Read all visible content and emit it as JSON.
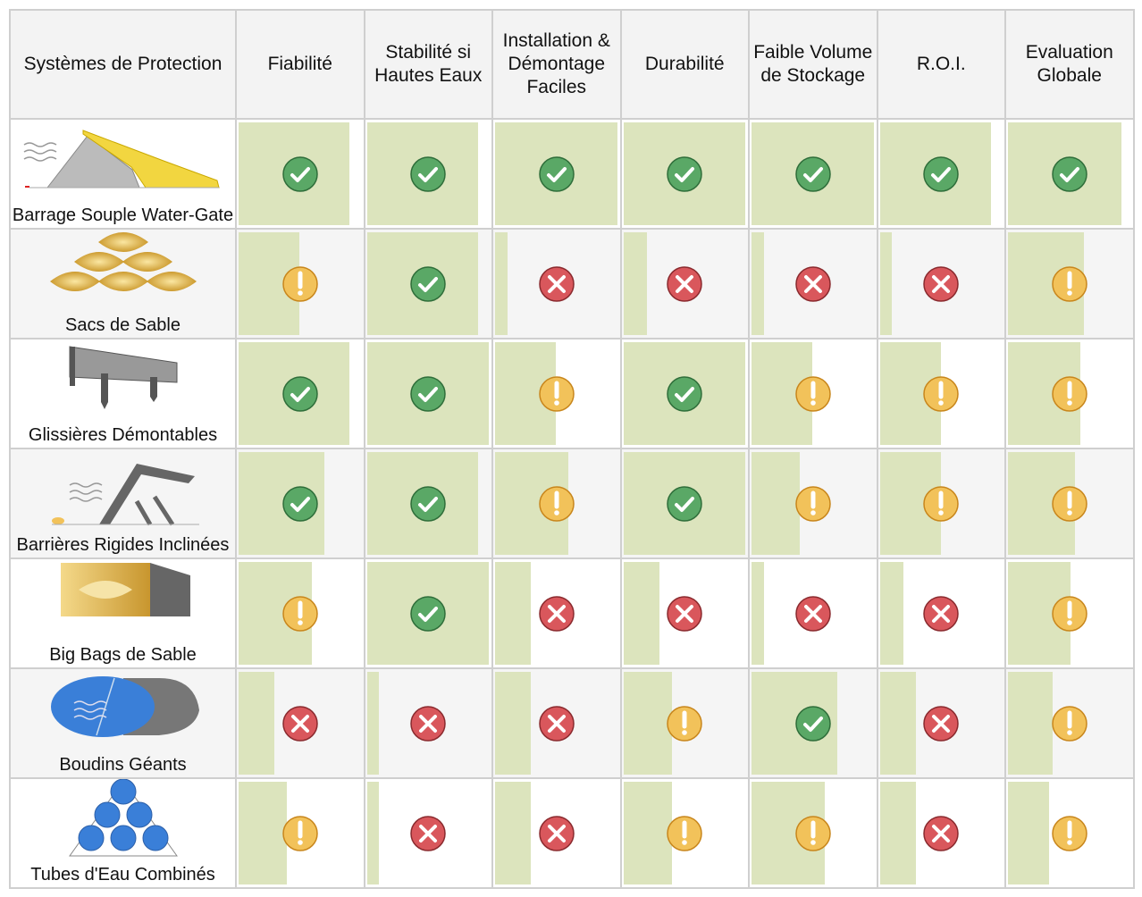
{
  "headers": [
    "Systèmes de Protection",
    "Fiabilité",
    "Stabilité si\nHautes Eaux",
    "Installation &\nDémontage\nFaciles",
    "Durabilité",
    "Faible Volume\nde Stockage",
    "R.O.I.",
    "Evaluation\nGlobale"
  ],
  "colors": {
    "bar": "#dce4bd",
    "check": "#5aa866",
    "warning": "#f2c25a",
    "cross": "#d9575c",
    "border": "#cfcfcf"
  },
  "rows": [
    {
      "name": "Barrage Souple Water-Gate",
      "image": "water-gate-image",
      "ratings": [
        [
          "check",
          89
        ],
        [
          "check",
          89
        ],
        [
          "check",
          98
        ],
        [
          "check",
          98
        ],
        [
          "check",
          98
        ],
        [
          "check",
          89
        ],
        [
          "check",
          91
        ]
      ]
    },
    {
      "name": "Sacs de Sable",
      "image": "sandbags-image",
      "ratings": [
        [
          "warning",
          49
        ],
        [
          "check",
          89
        ],
        [
          "cross",
          10
        ],
        [
          "cross",
          19
        ],
        [
          "cross",
          10
        ],
        [
          "cross",
          10
        ],
        [
          "warning",
          61
        ]
      ]
    },
    {
      "name": "Glissières Démontables",
      "image": "demountable-barrier-image",
      "ratings": [
        [
          "check",
          89
        ],
        [
          "check",
          98
        ],
        [
          "warning",
          49
        ],
        [
          "check",
          98
        ],
        [
          "warning",
          49
        ],
        [
          "warning",
          49
        ],
        [
          "warning",
          58
        ]
      ]
    },
    {
      "name": "Barrières Rigides Inclinées",
      "image": "inclined-barrier-image",
      "ratings": [
        [
          "check",
          69
        ],
        [
          "check",
          89
        ],
        [
          "warning",
          59
        ],
        [
          "check",
          98
        ],
        [
          "warning",
          39
        ],
        [
          "warning",
          49
        ],
        [
          "warning",
          54
        ]
      ]
    },
    {
      "name": "Big Bags de Sable",
      "image": "big-bag-image",
      "ratings": [
        [
          "warning",
          59
        ],
        [
          "check",
          98
        ],
        [
          "cross",
          29
        ],
        [
          "cross",
          29
        ],
        [
          "cross",
          10
        ],
        [
          "cross",
          19
        ],
        [
          "warning",
          50
        ]
      ]
    },
    {
      "name": "Boudins Géants",
      "image": "giant-tube-image",
      "ratings": [
        [
          "cross",
          29
        ],
        [
          "cross",
          10
        ],
        [
          "cross",
          29
        ],
        [
          "warning",
          39
        ],
        [
          "check",
          69
        ],
        [
          "cross",
          29
        ],
        [
          "warning",
          36
        ]
      ]
    },
    {
      "name": "Tubes d'Eau Combinés",
      "image": "combined-tubes-image",
      "ratings": [
        [
          "warning",
          39
        ],
        [
          "cross",
          10
        ],
        [
          "cross",
          29
        ],
        [
          "warning",
          39
        ],
        [
          "warning",
          59
        ],
        [
          "cross",
          29
        ],
        [
          "warning",
          33
        ]
      ]
    }
  ]
}
